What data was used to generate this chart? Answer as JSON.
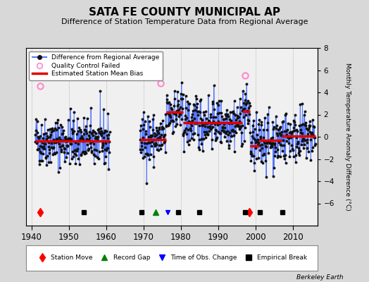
{
  "title": "SATA FE COUNTY MUNICIPAL AP",
  "subtitle": "Difference of Station Temperature Data from Regional Average",
  "ylabel_right": "Monthly Temperature Anomaly Difference (°C)",
  "ylim": [
    -8,
    8
  ],
  "xlim": [
    1938.5,
    2016.5
  ],
  "xticks": [
    1940,
    1950,
    1960,
    1970,
    1980,
    1990,
    2000,
    2010
  ],
  "yticks": [
    -6,
    -4,
    -2,
    0,
    2,
    4,
    6,
    8
  ],
  "background_color": "#d8d8d8",
  "plot_bg_color": "#f0f0f0",
  "grid_color": "#bbbbbb",
  "line_color": "#5577ff",
  "dot_color": "#111111",
  "bias_color": "#dd0000",
  "qc_color": "#ff88cc",
  "title_fontsize": 11,
  "subtitle_fontsize": 8,
  "segment_biases": [
    {
      "start": 1941.0,
      "end": 1961.0,
      "bias": -0.4
    },
    {
      "start": 1969.0,
      "end": 1976.0,
      "bias": -0.25
    },
    {
      "start": 1976.0,
      "end": 1980.5,
      "bias": 2.2
    },
    {
      "start": 1980.5,
      "end": 1985.0,
      "bias": 1.3
    },
    {
      "start": 1985.0,
      "end": 1996.5,
      "bias": 1.3
    },
    {
      "start": 1996.5,
      "end": 1998.5,
      "bias": 2.3
    },
    {
      "start": 1998.5,
      "end": 2001.0,
      "bias": -0.8
    },
    {
      "start": 2001.0,
      "end": 2007.0,
      "bias": -0.3
    },
    {
      "start": 2007.0,
      "end": 2016.0,
      "bias": 0.05
    }
  ],
  "station_moves": [
    1942.3,
    1998.2
  ],
  "record_gaps": [
    1973.2
  ],
  "obs_changes": [
    1976.5
  ],
  "empirical_breaks": [
    1954.0,
    1969.5,
    1979.2,
    1985.0,
    1997.2,
    2001.2,
    2007.2
  ],
  "gap_start": 1961,
  "gap_end": 1969,
  "qc_failed": [
    {
      "t": 1942.3,
      "v": 4.6
    },
    {
      "t": 1974.5,
      "v": 4.85
    },
    {
      "t": 1997.2,
      "v": 5.5
    }
  ],
  "seed": 42
}
